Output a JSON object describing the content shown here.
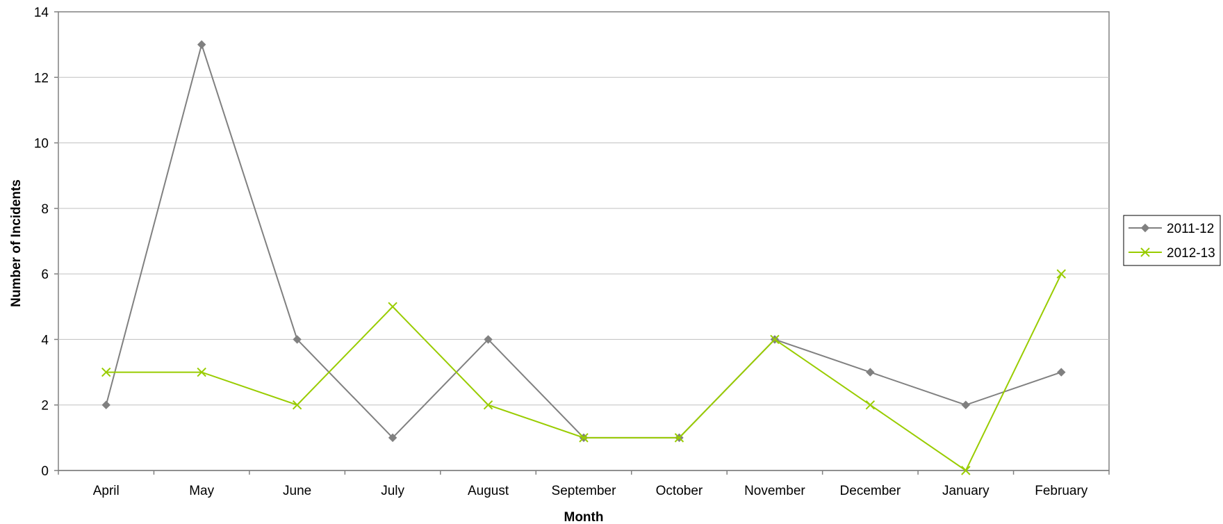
{
  "chart_data": {
    "type": "line",
    "title": "",
    "xlabel": "Month",
    "ylabel": "Number of Incidents",
    "categories": [
      "April",
      "May",
      "June",
      "July",
      "August",
      "September",
      "October",
      "November",
      "December",
      "January",
      "February"
    ],
    "ylim": [
      0,
      14
    ],
    "yticks": [
      0,
      2,
      4,
      6,
      8,
      10,
      12,
      14
    ],
    "grid": "horizontal",
    "legend_position": "right",
    "series": [
      {
        "name": "2011-12",
        "color": "#808080",
        "marker": "diamond",
        "values": [
          2,
          13,
          4,
          1,
          4,
          1,
          1,
          4,
          3,
          2,
          3
        ]
      },
      {
        "name": "2012-13",
        "color": "#99cc00",
        "marker": "x",
        "values": [
          3,
          3,
          2,
          5,
          2,
          1,
          1,
          4,
          2,
          0,
          6
        ]
      }
    ]
  }
}
